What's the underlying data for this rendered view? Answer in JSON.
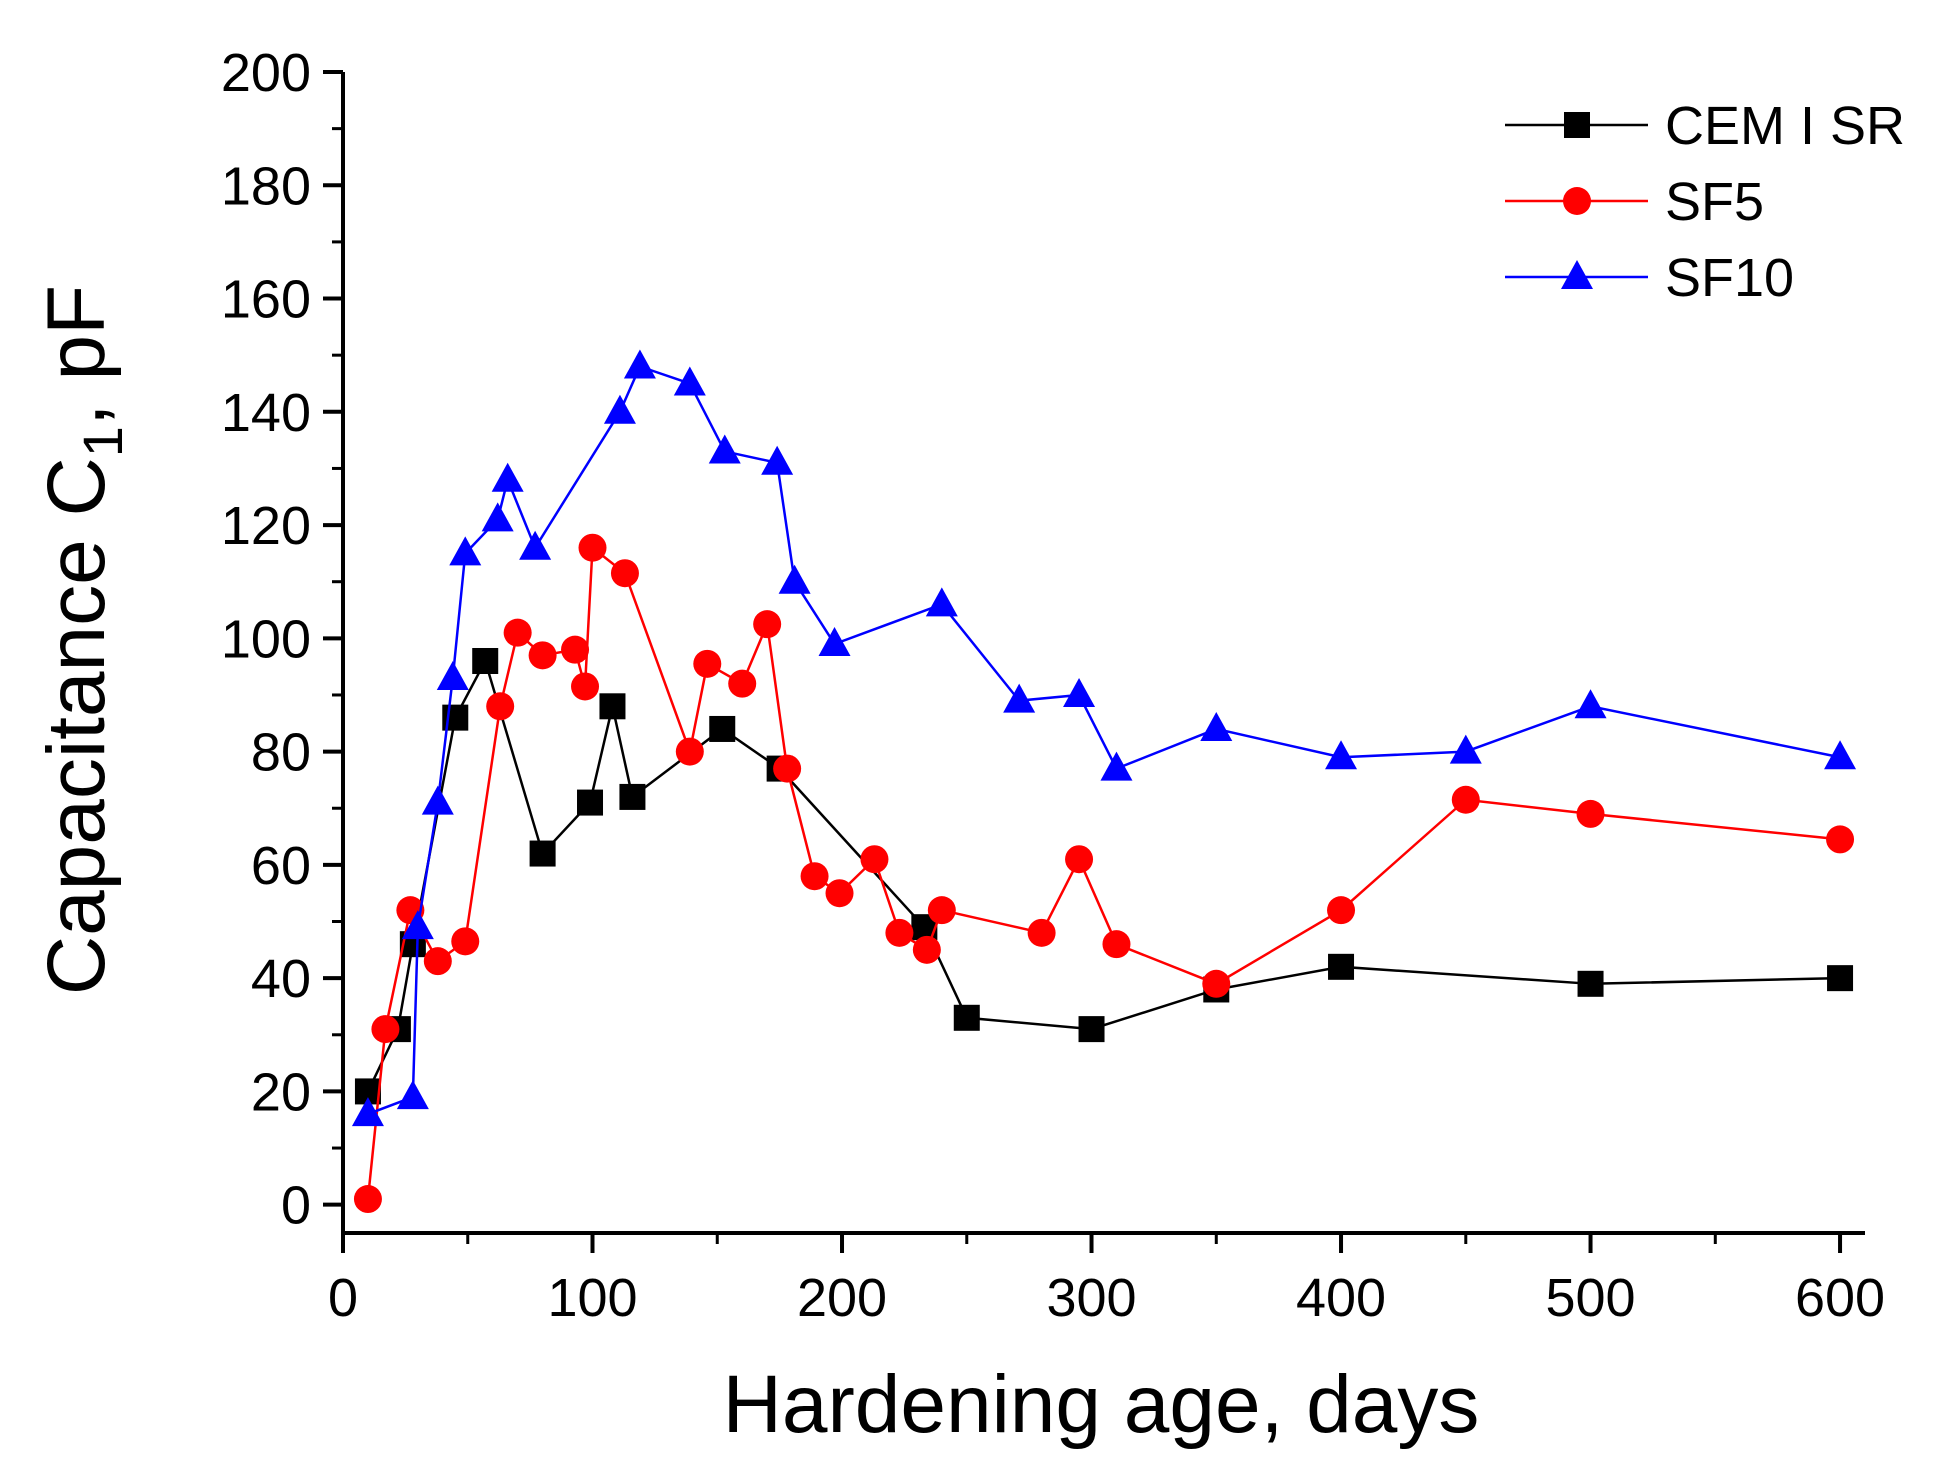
{
  "chart_data": {
    "type": "line",
    "xlabel": "Hardening age, days",
    "ylabel": "Capacitance C",
    "ylabel_subscript": "1",
    "ylabel_unit": ",  pF",
    "xlim": [
      0,
      610
    ],
    "ylim": [
      -5,
      200
    ],
    "xticks": [
      0,
      100,
      200,
      300,
      400,
      500,
      600
    ],
    "yticks": [
      0,
      20,
      40,
      60,
      80,
      100,
      120,
      140,
      160,
      180,
      200
    ],
    "grid": false,
    "legend_position": "top-right",
    "series": [
      {
        "name": "CEM I SR",
        "color": "#000000",
        "marker": "square",
        "points": [
          [
            10,
            20
          ],
          [
            22,
            31
          ],
          [
            28,
            46
          ],
          [
            45,
            86
          ],
          [
            57,
            96
          ],
          [
            80,
            62
          ],
          [
            99,
            71
          ],
          [
            108,
            88
          ],
          [
            116,
            72
          ],
          [
            152,
            84
          ],
          [
            175,
            77
          ],
          [
            233,
            49
          ],
          [
            250,
            33
          ],
          [
            300,
            31
          ],
          [
            350,
            38
          ],
          [
            400,
            42
          ],
          [
            500,
            39
          ],
          [
            600,
            40
          ]
        ]
      },
      {
        "name": "SF5",
        "color": "#ff0000",
        "marker": "circle",
        "points": [
          [
            10,
            1
          ],
          [
            17,
            31
          ],
          [
            27,
            52
          ],
          [
            38,
            43
          ],
          [
            49,
            46.5
          ],
          [
            63,
            88
          ],
          [
            70,
            101
          ],
          [
            80,
            97
          ],
          [
            93,
            98
          ],
          [
            97,
            91.5
          ],
          [
            100,
            116
          ],
          [
            113,
            111.5
          ],
          [
            139,
            80
          ],
          [
            146,
            95.5
          ],
          [
            160,
            92
          ],
          [
            170,
            102.5
          ],
          [
            178,
            77
          ],
          [
            189,
            58
          ],
          [
            199,
            55
          ],
          [
            213,
            61
          ],
          [
            223,
            48
          ],
          [
            234,
            45
          ],
          [
            240,
            52
          ],
          [
            280,
            48
          ],
          [
            295,
            61
          ],
          [
            310,
            46
          ],
          [
            350,
            39
          ],
          [
            400,
            52
          ],
          [
            450,
            71.5
          ],
          [
            500,
            69
          ],
          [
            600,
            64.5
          ]
        ]
      },
      {
        "name": "SF10",
        "color": "#0000ff",
        "marker": "triangle",
        "points": [
          [
            10,
            16
          ],
          [
            28,
            19
          ],
          [
            30,
            49
          ],
          [
            38,
            71
          ],
          [
            44,
            93
          ],
          [
            49,
            115
          ],
          [
            62,
            121
          ],
          [
            66,
            128
          ],
          [
            77,
            116
          ],
          [
            111,
            140
          ],
          [
            119,
            148
          ],
          [
            139,
            145
          ],
          [
            153,
            133
          ],
          [
            174,
            131
          ],
          [
            181,
            110
          ],
          [
            197,
            99
          ],
          [
            240,
            106
          ],
          [
            271,
            89
          ],
          [
            295,
            90
          ],
          [
            310,
            77
          ],
          [
            350,
            84
          ],
          [
            400,
            79
          ],
          [
            450,
            80
          ],
          [
            500,
            88
          ],
          [
            600,
            79
          ]
        ]
      }
    ]
  }
}
